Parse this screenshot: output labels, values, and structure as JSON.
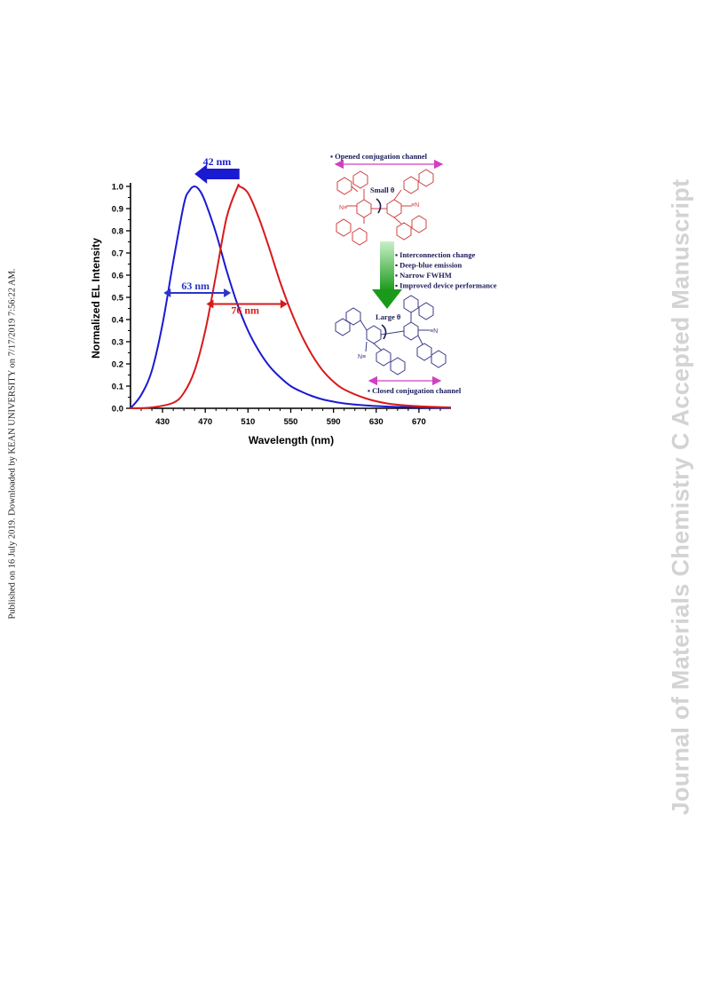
{
  "margin": {
    "left_text": "Published on 16 July 2019. Downloaded by KEAN UNIVERSITY on 7/17/2019 7:56:22 AM.",
    "right_text": "Journal of Materials Chemistry C Accepted Manuscript"
  },
  "chart_data": {
    "type": "line",
    "xlabel": "Wavelength (nm)",
    "ylabel": "Normalized EL Intensity",
    "xlim": [
      400,
      700
    ],
    "ylim": [
      0,
      1.0
    ],
    "x_ticks": [
      430,
      470,
      510,
      550,
      590,
      630,
      670
    ],
    "y_ticks": [
      0.0,
      0.1,
      0.2,
      0.3,
      0.4,
      0.5,
      0.6,
      0.7,
      0.8,
      0.9,
      1.0
    ],
    "x_tick_labels": [
      "430",
      "470",
      "510",
      "550",
      "590",
      "630",
      "670"
    ],
    "y_tick_labels": [
      "0.0",
      "0.1",
      "0.2",
      "0.3",
      "0.4",
      "0.5",
      "0.6",
      "0.7",
      "0.8",
      "0.9",
      "1.0"
    ],
    "series": [
      {
        "color": "#1a1ad0",
        "peak": 460,
        "x": [
          400,
          410,
          420,
          430,
          440,
          450,
          455,
          460,
          465,
          470,
          480,
          490,
          500,
          510,
          520,
          530,
          540,
          550,
          560,
          570,
          580,
          590,
          600,
          620,
          640,
          660,
          680,
          700
        ],
        "y": [
          0.0,
          0.06,
          0.17,
          0.38,
          0.66,
          0.92,
          0.98,
          1.0,
          0.98,
          0.93,
          0.79,
          0.62,
          0.47,
          0.35,
          0.26,
          0.19,
          0.14,
          0.1,
          0.075,
          0.055,
          0.04,
          0.03,
          0.022,
          0.013,
          0.008,
          0.005,
          0.003,
          0.002
        ]
      },
      {
        "color": "#d81a1a",
        "peak": 502,
        "x": [
          400,
          420,
          440,
          450,
          460,
          470,
          480,
          490,
          500,
          502,
          510,
          520,
          530,
          540,
          550,
          560,
          570,
          580,
          590,
          600,
          620,
          640,
          660,
          680,
          700
        ],
        "y": [
          0.0,
          0.004,
          0.025,
          0.07,
          0.17,
          0.35,
          0.6,
          0.86,
          0.995,
          1.0,
          0.97,
          0.86,
          0.72,
          0.57,
          0.44,
          0.33,
          0.24,
          0.17,
          0.12,
          0.085,
          0.045,
          0.022,
          0.012,
          0.007,
          0.004
        ]
      }
    ],
    "annotations": [
      {
        "text": "42 nm",
        "color": "#1a1ad0",
        "kind": "shift-arrow",
        "from_x": 502,
        "to_x": 460
      },
      {
        "text": "63 nm",
        "color": "#2b35c7",
        "kind": "fwhm",
        "from_x": 431,
        "to_x": 494,
        "y": 0.52
      },
      {
        "text": "76 nm",
        "color": "#d81a1a",
        "kind": "fwhm",
        "from_x": 471,
        "to_x": 547,
        "y": 0.47
      }
    ]
  },
  "scheme": {
    "opened_label": "Opened conjugation channel",
    "closed_label": "Closed conjugation channel",
    "small_theta": "Small θ",
    "large_theta": "Large θ",
    "bullets": [
      "Interconnection change",
      "Deep-blue emission",
      "Narrow FWHM",
      "Improved device performance"
    ],
    "atom_N": "N",
    "atom_CN_left": "N≡",
    "atom_CN_right": "≡N",
    "colors": {
      "top_molecule": "#d04040",
      "bottom_molecule": "#3a3a8a",
      "channel_arrow": "#d040c0",
      "process_arrow": "#2aa02a",
      "text": "#1a1a5a"
    }
  }
}
